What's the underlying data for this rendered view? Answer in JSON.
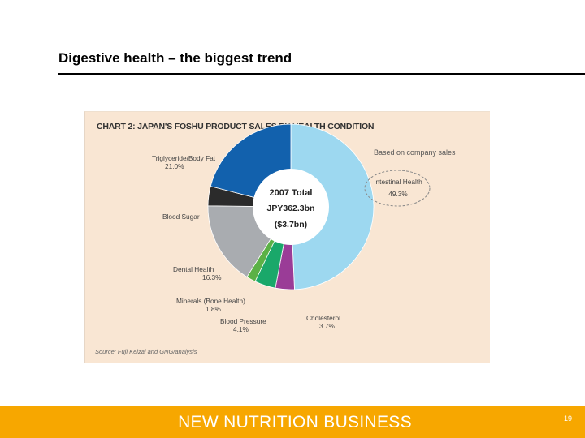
{
  "slide": {
    "title": "Digestive health – the biggest trend",
    "footer_brand": "NEW NUTRITION BUSINESS",
    "page_number": "19"
  },
  "colors": {
    "footer_bg": "#f7a700",
    "panel_bg": "#f9e6d3",
    "intestinal": "#9dd8f0",
    "cholesterol": "#9a3c97",
    "blood_pressure": "#1aa86a",
    "minerals": "#5bb146",
    "dental": "#a9acb0",
    "blood_sugar": "#2b2b2b",
    "triglyceride": "#1261ad"
  },
  "chart_data": {
    "type": "pie",
    "title": "CHART 2: JAPAN'S FOSHU PRODUCT SALES BY HEALTH CONDITION",
    "note": "Based on company sales",
    "center_labels": [
      "2007 Total",
      "JPY362.3bn",
      "($3.7bn)"
    ],
    "source": "Source: Fuji Keizai and GNG/analysis",
    "slices": [
      {
        "name": "Intestinal Health",
        "value": 49.3,
        "value_label": "49.3%",
        "color_key": "intestinal"
      },
      {
        "name": "Cholesterol",
        "value": 3.7,
        "value_label": "3.7%",
        "color_key": "cholesterol"
      },
      {
        "name": "Blood Pressure",
        "value": 4.1,
        "value_label": "4.1%",
        "color_key": "blood_pressure"
      },
      {
        "name": "Minerals (Bone Health)",
        "value": 1.8,
        "value_label": "1.8%",
        "color_key": "minerals"
      },
      {
        "name": "Dental Health",
        "value": 16.3,
        "value_label": "16.3%",
        "color_key": "dental"
      },
      {
        "name": "Blood Sugar",
        "value": 3.8,
        "value_label": "",
        "color_key": "blood_sugar"
      },
      {
        "name": "Triglyceride/Body Fat",
        "value": 21.0,
        "value_label": "21.0%",
        "color_key": "triglyceride"
      }
    ]
  }
}
